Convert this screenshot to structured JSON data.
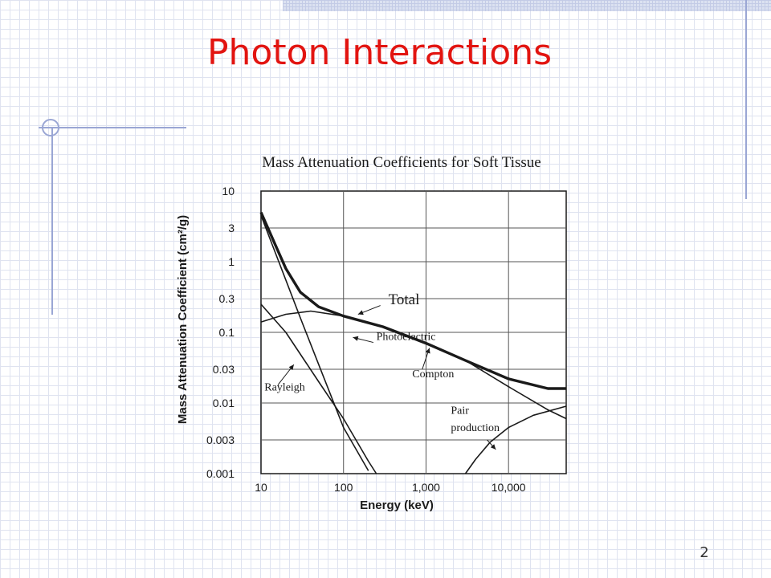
{
  "slide": {
    "title": "Photon Interactions",
    "page_number": "2"
  },
  "colors": {
    "title": "#e21410",
    "rule": "#9aa6d4",
    "ink": "#1a1a1a"
  },
  "chart_data": {
    "type": "line",
    "title": "Mass Attenuation Coefficients for Soft Tissue",
    "xlabel": "Energy (keV)",
    "ylabel": "Mass Attenuation Coefficient (cm²/g)",
    "xscale": "log",
    "yscale": "log",
    "xlim": [
      10,
      50000
    ],
    "ylim": [
      0.001,
      10
    ],
    "x_ticks": [
      10,
      100,
      1000,
      10000
    ],
    "x_tick_labels": [
      "10",
      "100",
      "1,000",
      "10,000"
    ],
    "y_ticks": [
      10,
      3,
      1,
      0.3,
      0.1,
      0.03,
      0.01,
      0.003,
      0.001
    ],
    "y_tick_labels": [
      "10",
      "3",
      "1",
      "0.3",
      "0.1",
      "0.03",
      "0.01",
      "0.003",
      "0.001"
    ],
    "grid": true,
    "series": [
      {
        "name": "Total",
        "points": [
          [
            10,
            5
          ],
          [
            15,
            1.7
          ],
          [
            20,
            0.8
          ],
          [
            30,
            0.37
          ],
          [
            50,
            0.23
          ],
          [
            100,
            0.17
          ],
          [
            300,
            0.12
          ],
          [
            1000,
            0.07
          ],
          [
            3000,
            0.04
          ],
          [
            10000,
            0.022
          ],
          [
            30000,
            0.016
          ],
          [
            50000,
            0.016
          ]
        ]
      },
      {
        "name": "Photoelectric",
        "points": [
          [
            10,
            4.5
          ],
          [
            20,
            0.55
          ],
          [
            30,
            0.16
          ],
          [
            50,
            0.035
          ],
          [
            100,
            0.0045
          ],
          [
            200,
            0.0011
          ]
        ]
      },
      {
        "name": "Compton",
        "points": [
          [
            10,
            0.14
          ],
          [
            20,
            0.18
          ],
          [
            40,
            0.2
          ],
          [
            100,
            0.17
          ],
          [
            300,
            0.12
          ],
          [
            1000,
            0.07
          ],
          [
            3000,
            0.04
          ],
          [
            10000,
            0.017
          ],
          [
            30000,
            0.008
          ],
          [
            50000,
            0.006
          ]
        ]
      },
      {
        "name": "Rayleigh",
        "points": [
          [
            10,
            0.25
          ],
          [
            20,
            0.1
          ],
          [
            50,
            0.02
          ],
          [
            100,
            0.006
          ],
          [
            200,
            0.0015
          ],
          [
            250,
            0.001
          ]
        ]
      },
      {
        "name": "Pair production",
        "points": [
          [
            3000,
            0.001
          ],
          [
            4000,
            0.0016
          ],
          [
            6000,
            0.0028
          ],
          [
            10000,
            0.0045
          ],
          [
            20000,
            0.0067
          ],
          [
            50000,
            0.009
          ]
        ]
      }
    ],
    "annotations": [
      {
        "text": "Total",
        "at": [
          350,
          0.25
        ]
      },
      {
        "text": "Photoelectric",
        "at": [
          250,
          0.078
        ]
      },
      {
        "text": "Compton",
        "at": [
          680,
          0.023
        ]
      },
      {
        "text": "Rayleigh",
        "at": [
          11,
          0.015
        ]
      },
      {
        "text": "Pair",
        "at": [
          2000,
          0.007
        ]
      },
      {
        "text": "production",
        "at": [
          2000,
          0.004
        ]
      }
    ]
  }
}
